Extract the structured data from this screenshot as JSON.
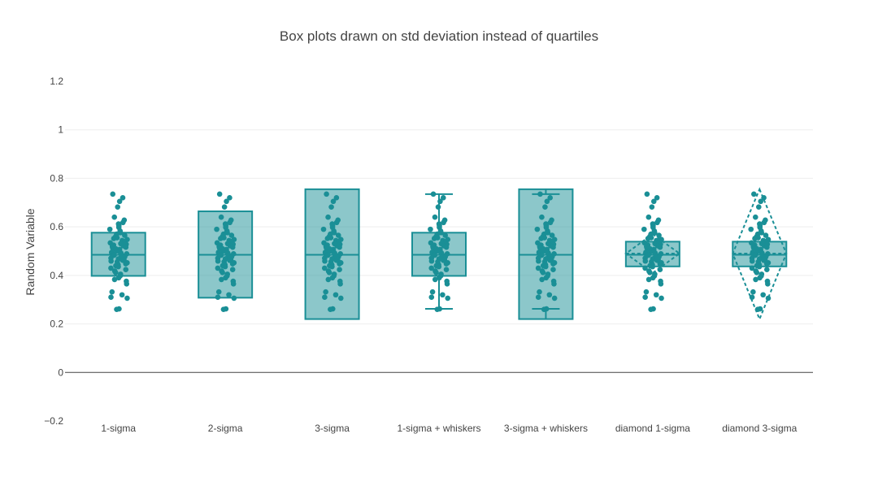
{
  "chart_data": {
    "type": "box",
    "title": "Box plots drawn on std deviation instead of quartiles",
    "ylabel": "Random Variable",
    "xlabel": "",
    "ylim": [
      -0.2,
      1.2
    ],
    "yticks": [
      -0.2,
      0,
      0.2,
      0.4,
      0.6,
      0.8,
      1,
      1.2
    ],
    "ytick_labels": [
      "−0.2",
      "0",
      "0.2",
      "0.4",
      "0.6",
      "0.8",
      "1",
      "1.2"
    ],
    "categories": [
      "1-sigma",
      "2-sigma",
      "3-sigma",
      "1-sigma + whiskers",
      "3-sigma + whiskers",
      "diamond 1-sigma",
      "diamond 3-sigma"
    ],
    "colors": {
      "marker": "#1a8f96",
      "box_fill": "rgba(26,143,150,0.5)",
      "box_line": "#1a8f96",
      "grid": "#eeeeee",
      "zeroline": "#444444"
    },
    "boxes": [
      {
        "name": "1-sigma",
        "median": 0.485,
        "box": [
          0.398,
          0.576
        ],
        "whiskers": null,
        "diamond": null
      },
      {
        "name": "2-sigma",
        "median": 0.485,
        "box": [
          0.308,
          0.664
        ],
        "whiskers": null,
        "diamond": null
      },
      {
        "name": "3-sigma",
        "median": 0.485,
        "box": [
          0.22,
          0.755
        ],
        "whiskers": null,
        "diamond": null
      },
      {
        "name": "1-sigma + whiskers",
        "median": 0.485,
        "box": [
          0.398,
          0.576
        ],
        "whiskers": [
          0.262,
          0.735
        ],
        "diamond": null
      },
      {
        "name": "3-sigma + whiskers",
        "median": 0.485,
        "box": [
          0.22,
          0.755
        ],
        "whiskers": [
          0.262,
          0.735
        ],
        "diamond": null
      },
      {
        "name": "diamond 1-sigma",
        "median": 0.485,
        "box": [
          0.437,
          0.539
        ],
        "whiskers": null,
        "diamond": {
          "mean": 0.49,
          "low": 0.41,
          "high": 0.57
        }
      },
      {
        "name": "diamond 3-sigma",
        "median": 0.485,
        "box": [
          0.437,
          0.539
        ],
        "whiskers": null,
        "diamond": {
          "mean": 0.49,
          "low": 0.22,
          "high": 0.755
        }
      }
    ],
    "points": [
      0.735,
      0.72,
      0.705,
      0.682,
      0.64,
      0.628,
      0.618,
      0.612,
      0.605,
      0.598,
      0.59,
      0.583,
      0.576,
      0.57,
      0.565,
      0.56,
      0.555,
      0.552,
      0.548,
      0.544,
      0.54,
      0.537,
      0.534,
      0.531,
      0.528,
      0.525,
      0.522,
      0.519,
      0.516,
      0.513,
      0.51,
      0.507,
      0.504,
      0.501,
      0.498,
      0.495,
      0.492,
      0.489,
      0.486,
      0.483,
      0.48,
      0.477,
      0.474,
      0.471,
      0.468,
      0.465,
      0.462,
      0.459,
      0.456,
      0.452,
      0.448,
      0.444,
      0.44,
      0.436,
      0.43,
      0.424,
      0.418,
      0.412,
      0.405,
      0.398,
      0.39,
      0.383,
      0.376,
      0.365,
      0.332,
      0.32,
      0.31,
      0.306,
      0.262,
      0.26
    ]
  }
}
